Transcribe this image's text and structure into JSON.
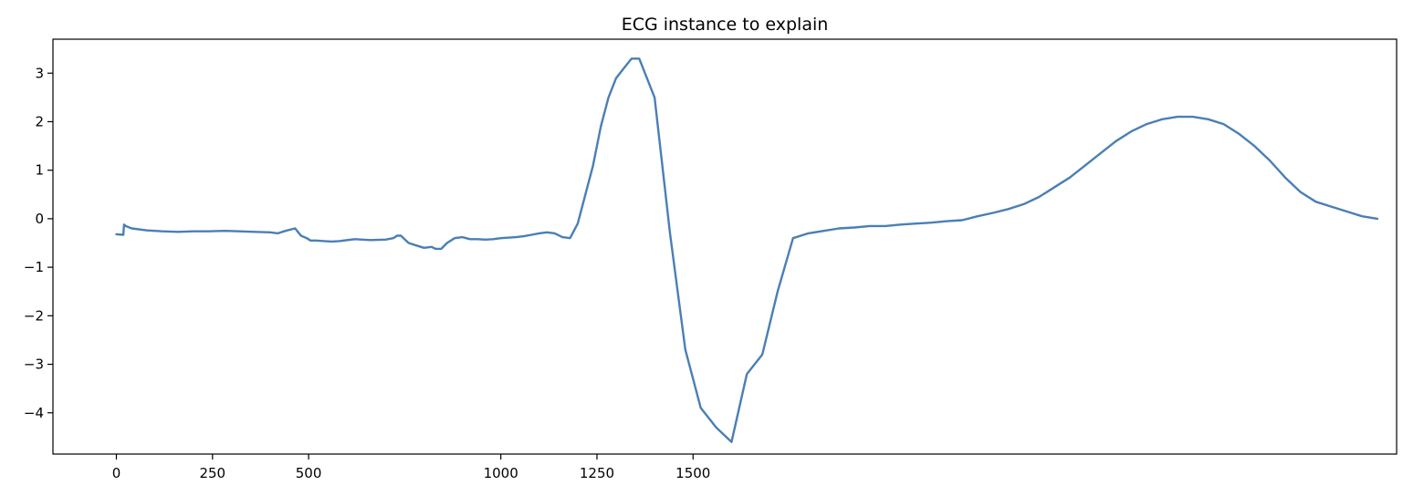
{
  "chart_data": {
    "type": "line",
    "title": "ECG instance to explain",
    "xlabel": "",
    "ylabel": "",
    "xlim": [
      -165,
      3330
    ],
    "ylim": [
      -4.85,
      3.7
    ],
    "xticks": [
      {
        "value": 0,
        "label": "0"
      },
      {
        "value": 250,
        "label": "250"
      },
      {
        "value": 500,
        "label": "500"
      },
      {
        "value": 1000,
        "label": "1000"
      },
      {
        "value": 1250,
        "label": "1250"
      },
      {
        "value": 1500,
        "label": "1500"
      }
    ],
    "yticks": [
      {
        "value": 3,
        "label": "3"
      },
      {
        "value": 2,
        "label": "2"
      },
      {
        "value": 1,
        "label": "1"
      },
      {
        "value": 0,
        "label": "0"
      },
      {
        "value": -1,
        "label": "−1"
      },
      {
        "value": -2,
        "label": "−2"
      },
      {
        "value": -3,
        "label": "−3"
      },
      {
        "value": -4,
        "label": "−4"
      }
    ],
    "grid": false,
    "legend": "none",
    "color": "#4a7fb5",
    "series": [
      {
        "name": "",
        "x": [
          0,
          18,
          20,
          24,
          40,
          80,
          120,
          160,
          200,
          240,
          280,
          320,
          360,
          400,
          420,
          440,
          465,
          480,
          495,
          505,
          520,
          540,
          560,
          580,
          620,
          660,
          700,
          720,
          725,
          730,
          740,
          760,
          780,
          800,
          820,
          830,
          845,
          860,
          880,
          900,
          920,
          940,
          960,
          980,
          1000,
          1040,
          1060,
          1080,
          1100,
          1120,
          1140,
          1160,
          1180,
          1200,
          1220,
          1240,
          1260,
          1280,
          1300,
          1320,
          1340,
          1360,
          1400,
          1440,
          1480,
          1520,
          1560,
          1600,
          1640,
          1680,
          1720,
          1760,
          1800,
          1840,
          1880,
          1920,
          1960,
          2000,
          2040,
          2080,
          2120,
          2160,
          2200,
          2240,
          2280,
          2320,
          2360,
          2400,
          2440,
          2480,
          2520,
          2560,
          2600,
          2640,
          2680,
          2720,
          2760,
          2800,
          2840,
          2880,
          2920,
          2960,
          3000,
          3040,
          3080,
          3120,
          3160,
          3200,
          3240,
          3280
        ],
        "y": [
          -0.32,
          -0.33,
          -0.12,
          -0.15,
          -0.2,
          -0.24,
          -0.26,
          -0.27,
          -0.26,
          -0.26,
          -0.25,
          -0.26,
          -0.27,
          -0.28,
          -0.3,
          -0.25,
          -0.2,
          -0.35,
          -0.4,
          -0.45,
          -0.45,
          -0.46,
          -0.47,
          -0.46,
          -0.42,
          -0.44,
          -0.43,
          -0.4,
          -0.38,
          -0.35,
          -0.35,
          -0.5,
          -0.55,
          -0.6,
          -0.58,
          -0.62,
          -0.62,
          -0.5,
          -0.4,
          -0.38,
          -0.42,
          -0.42,
          -0.43,
          -0.42,
          -0.4,
          -0.38,
          -0.36,
          -0.33,
          -0.3,
          -0.28,
          -0.3,
          -0.38,
          -0.4,
          -0.1,
          0.5,
          1.1,
          1.9,
          2.5,
          2.9,
          3.1,
          3.3,
          3.3,
          2.5,
          -0.3,
          -2.7,
          -3.9,
          -4.3,
          -4.6,
          -3.2,
          -2.8,
          -1.5,
          -0.4,
          -0.3,
          -0.25,
          -0.2,
          -0.18,
          -0.15,
          -0.15,
          -0.12,
          -0.1,
          -0.08,
          -0.05,
          -0.03,
          0.05,
          0.12,
          0.2,
          0.3,
          0.45,
          0.65,
          0.85,
          1.1,
          1.35,
          1.6,
          1.8,
          1.95,
          2.05,
          2.1,
          2.1,
          2.05,
          1.95,
          1.75,
          1.5,
          1.2,
          0.85,
          0.55,
          0.35,
          0.25,
          0.15,
          0.05,
          0.0
        ]
      }
    ]
  }
}
